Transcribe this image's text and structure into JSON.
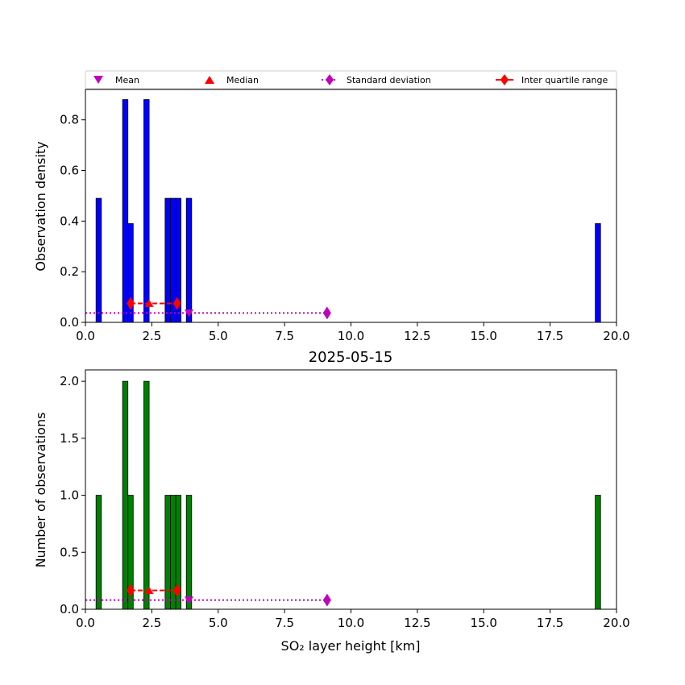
{
  "legend": {
    "mean": "Mean",
    "median": "Median",
    "std": "Standard deviation",
    "iqr": "Inter quartile range"
  },
  "colors": {
    "density_bars": "#0000ff",
    "count_bars": "#008000",
    "mean": "#bf00bf",
    "median": "#ff0000",
    "std": "#bf00bf",
    "iqr": "#ff0000"
  },
  "chart_data": [
    {
      "type": "bar",
      "title": "",
      "xlabel": "",
      "ylabel": "Observation density",
      "xlim": [
        0,
        20
      ],
      "ylim": [
        0,
        0.92
      ],
      "xticks": [
        "0.0",
        "2.5",
        "5.0",
        "7.5",
        "10.0",
        "12.5",
        "15.0",
        "17.5",
        "20.0"
      ],
      "yticks": [
        "0.0",
        "0.2",
        "0.4",
        "0.6",
        "0.8"
      ],
      "bin_width": 0.2,
      "bars": [
        {
          "x": 0.5,
          "value": 0.49
        },
        {
          "x": 1.5,
          "value": 0.88
        },
        {
          "x": 1.7,
          "value": 0.39
        },
        {
          "x": 2.3,
          "value": 0.88
        },
        {
          "x": 3.1,
          "value": 0.49
        },
        {
          "x": 3.3,
          "value": 0.49
        },
        {
          "x": 3.5,
          "value": 0.49
        },
        {
          "x": 3.9,
          "value": 0.49
        },
        {
          "x": 19.3,
          "value": 0.39
        }
      ],
      "stats": {
        "mean": {
          "x": 3.9,
          "y": 0.037
        },
        "median": {
          "x": 2.4,
          "y": 0.075
        },
        "std": {
          "x0": 0.0,
          "x1": 9.1,
          "y": 0.037
        },
        "iqr": {
          "x0": 1.7,
          "x1": 3.45,
          "y": 0.075
        }
      }
    },
    {
      "type": "bar",
      "title": "2025-05-15",
      "xlabel": "SO₂ layer height [km]",
      "ylabel": "Number of observations",
      "xlim": [
        0,
        20
      ],
      "ylim": [
        0,
        2.1
      ],
      "xticks": [
        "0.0",
        "2.5",
        "5.0",
        "7.5",
        "10.0",
        "12.5",
        "15.0",
        "17.5",
        "20.0"
      ],
      "yticks": [
        "0.0",
        "0.5",
        "1.0",
        "1.5",
        "2.0"
      ],
      "bin_width": 0.2,
      "bars": [
        {
          "x": 0.5,
          "value": 1
        },
        {
          "x": 1.5,
          "value": 2
        },
        {
          "x": 1.7,
          "value": 1
        },
        {
          "x": 2.3,
          "value": 2
        },
        {
          "x": 3.1,
          "value": 1
        },
        {
          "x": 3.3,
          "value": 1
        },
        {
          "x": 3.5,
          "value": 1
        },
        {
          "x": 3.9,
          "value": 1
        },
        {
          "x": 19.3,
          "value": 1
        }
      ],
      "stats": {
        "mean": {
          "x": 3.9,
          "y": 0.08
        },
        "median": {
          "x": 2.4,
          "y": 0.165
        },
        "std": {
          "x0": 0.0,
          "x1": 9.1,
          "y": 0.08
        },
        "iqr": {
          "x0": 1.7,
          "x1": 3.45,
          "y": 0.165
        }
      }
    }
  ]
}
